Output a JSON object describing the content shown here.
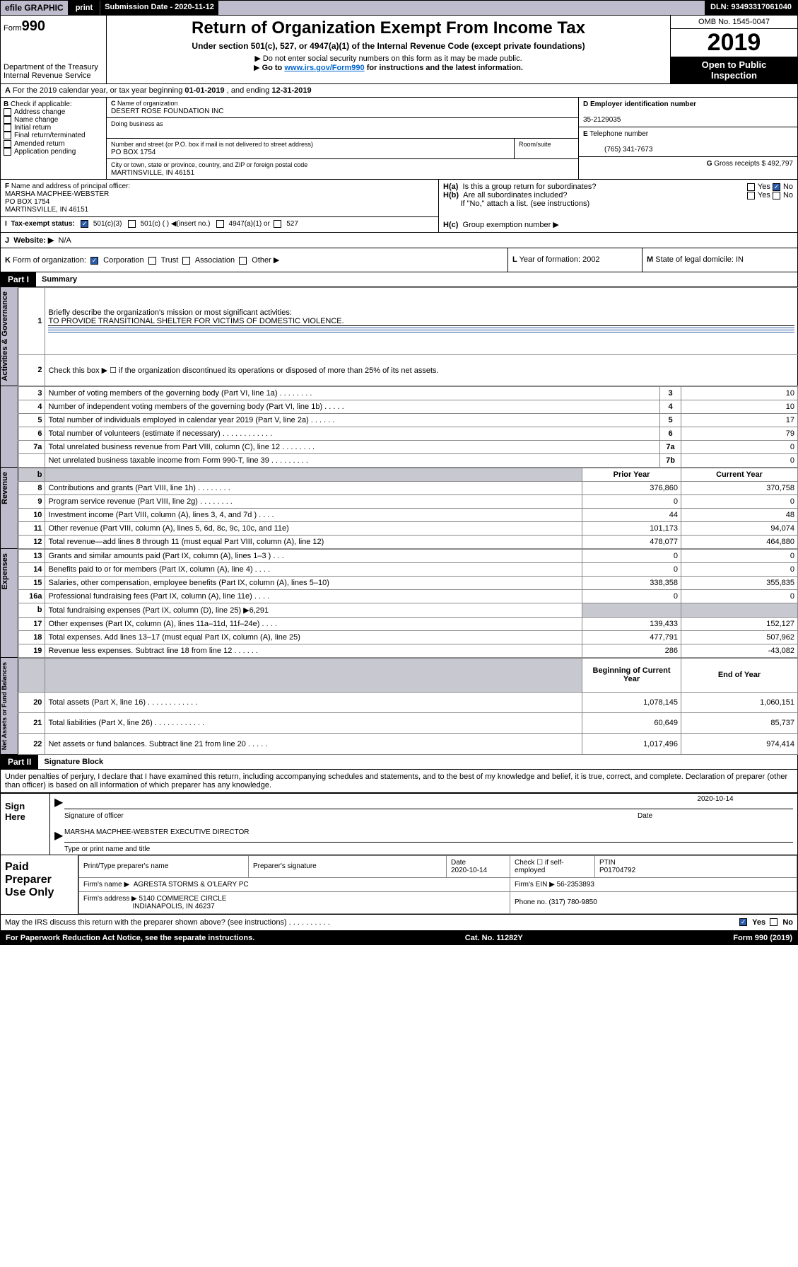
{
  "topbar": {
    "efile": "efile GRAPHIC",
    "print": "print",
    "sub_lbl": "Submission Date - ",
    "sub_date": "2020-11-12",
    "dln_lbl": "DLN: ",
    "dln": "93493317061040"
  },
  "header": {
    "form": "990",
    "form_prefix": "Form",
    "dept1": "Department of the Treasury",
    "dept2": "Internal Revenue Service",
    "title": "Return of Organization Exempt From Income Tax",
    "subtitle": "Under section 501(c), 527, or 4947(a)(1) of the Internal Revenue Code (except private foundations)",
    "hint1": "Do not enter social security numbers on this form as it may be made public.",
    "hint2a": "Go to ",
    "hint2b": "www.irs.gov/Form990",
    "hint2c": " for instructions and the latest information.",
    "omb": "OMB No. 1545-0047",
    "year": "2019",
    "open1": "Open to Public",
    "open2": "Inspection"
  },
  "rowA": {
    "text": "For the 2019 calendar year, or tax year beginning ",
    "begin": "01-01-2019",
    "mid": " , and ending ",
    "end": "12-31-2019"
  },
  "boxB": {
    "label": "Check if applicable:",
    "items": [
      "Address change",
      "Name change",
      "Initial return",
      "Final return/terminated",
      "Amended return",
      "Application pending"
    ]
  },
  "boxC": {
    "label": "Name of organization",
    "name": "DESERT ROSE FOUNDATION INC",
    "dba_label": "Doing business as",
    "addr_label": "Number and street (or P.O. box if mail is not delivered to street address)",
    "room_label": "Room/suite",
    "addr": "PO BOX 1754",
    "city_label": "City or town, state or province, country, and ZIP or foreign postal code",
    "city": "MARTINSVILLE, IN  46151"
  },
  "boxD": {
    "label": "Employer identification number",
    "val": "35-2129035"
  },
  "boxE": {
    "label": "Telephone number",
    "val": "(765) 341-7673"
  },
  "boxG": {
    "label": "Gross receipts $",
    "val": "492,797"
  },
  "boxF": {
    "label": "Name and address of principal officer:",
    "name": "MARSHA MACPHEE-WEBSTER",
    "addr1": "PO BOX 1754",
    "addr2": "MARTINSVILLE, IN  46151"
  },
  "boxH": {
    "a": "Is this a group return for subordinates?",
    "b": "Are all subordinates included?",
    "b2": "If \"No,\" attach a list. (see instructions)",
    "c": "Group exemption number ▶"
  },
  "boxI": {
    "label": "Tax-exempt status:",
    "o1": "501(c)(3)",
    "o2": "501(c) (   ) ◀(insert no.)",
    "o3": "4947(a)(1) or",
    "o4": "527"
  },
  "boxJ": {
    "label": "Website: ▶",
    "val": "N/A"
  },
  "boxK": {
    "label": "Form of organization:",
    "o1": "Corporation",
    "o2": "Trust",
    "o3": "Association",
    "o4": "Other ▶"
  },
  "boxL": {
    "label": "Year of formation:",
    "val": "2002"
  },
  "boxM": {
    "label": "State of legal domicile:",
    "val": "IN"
  },
  "part1": {
    "hdr": "Part I",
    "title": "Summary",
    "side1": "Activities & Governance",
    "side2": "Revenue",
    "side3": "Expenses",
    "side4": "Net Assets or Fund Balances",
    "l1": "Briefly describe the organization's mission or most significant activities:",
    "l1v": "TO PROVIDE TRANSITIONAL SHELTER FOR VICTIMS OF DOMESTIC VIOLENCE.",
    "l2": "Check this box ▶ ☐ if the organization discontinued its operations or disposed of more than 25% of its net assets.",
    "rows_gov": [
      {
        "n": "3",
        "t": "Number of voting members of the governing body (Part VI, line 1a)   .    .    .    .    .    .    .    .",
        "b": "3",
        "v": "10"
      },
      {
        "n": "4",
        "t": "Number of independent voting members of the governing body (Part VI, line 1b)   .    .    .    .    .",
        "b": "4",
        "v": "10"
      },
      {
        "n": "5",
        "t": "Total number of individuals employed in calendar year 2019 (Part V, line 2a)   .    .    .    .    .    .",
        "b": "5",
        "v": "17"
      },
      {
        "n": "6",
        "t": "Total number of volunteers (estimate if necessary)   .    .    .    .    .    .    .    .    .    .    .    .",
        "b": "6",
        "v": "79"
      },
      {
        "n": "7a",
        "t": "Total unrelated business revenue from Part VIII, column (C), line 12   .    .    .    .    .    .    .    .",
        "b": "7a",
        "v": "0"
      },
      {
        "n": "",
        "t": "Net unrelated business taxable income from Form 990-T, line 39   .    .    .    .    .    .    .    .    .",
        "b": "7b",
        "v": "0"
      }
    ],
    "col_prior": "Prior Year",
    "col_curr": "Current Year",
    "rows_rev": [
      {
        "n": "8",
        "t": "Contributions and grants (Part VIII, line 1h)   .    .    .    .    .    .    .    .",
        "p": "376,860",
        "c": "370,758"
      },
      {
        "n": "9",
        "t": "Program service revenue (Part VIII, line 2g)   .    .    .    .    .    .    .    .",
        "p": "0",
        "c": "0"
      },
      {
        "n": "10",
        "t": "Investment income (Part VIII, column (A), lines 3, 4, and 7d )   .    .    .    .",
        "p": "44",
        "c": "48"
      },
      {
        "n": "11",
        "t": "Other revenue (Part VIII, column (A), lines 5, 6d, 8c, 9c, 10c, and 11e)",
        "p": "101,173",
        "c": "94,074"
      },
      {
        "n": "12",
        "t": "Total revenue—add lines 8 through 11 (must equal Part VIII, column (A), line 12)",
        "p": "478,077",
        "c": "464,880"
      }
    ],
    "rows_exp": [
      {
        "n": "13",
        "t": "Grants and similar amounts paid (Part IX, column (A), lines 1–3 )   .    .    .",
        "p": "0",
        "c": "0"
      },
      {
        "n": "14",
        "t": "Benefits paid to or for members (Part IX, column (A), line 4)   .    .    .    .",
        "p": "0",
        "c": "0"
      },
      {
        "n": "15",
        "t": "Salaries, other compensation, employee benefits (Part IX, column (A), lines 5–10)",
        "p": "338,358",
        "c": "355,835"
      },
      {
        "n": "16a",
        "t": "Professional fundraising fees (Part IX, column (A), line 11e)   .    .    .    .",
        "p": "0",
        "c": "0"
      },
      {
        "n": "b",
        "t": "Total fundraising expenses (Part IX, column (D), line 25) ▶6,291",
        "p": "",
        "c": "",
        "shade": true
      },
      {
        "n": "17",
        "t": "Other expenses (Part IX, column (A), lines 11a–11d, 11f–24e)   .    .    .    .",
        "p": "139,433",
        "c": "152,127"
      },
      {
        "n": "18",
        "t": "Total expenses. Add lines 13–17 (must equal Part IX, column (A), line 25)",
        "p": "477,791",
        "c": "507,962"
      },
      {
        "n": "19",
        "t": "Revenue less expenses. Subtract line 18 from line 12   .    .    .    .    .    .",
        "p": "286",
        "c": "-43,082"
      }
    ],
    "col_begin": "Beginning of Current Year",
    "col_end": "End of Year",
    "rows_net": [
      {
        "n": "20",
        "t": "Total assets (Part X, line 16)   .    .    .    .    .    .    .    .    .    .    .    .",
        "p": "1,078,145",
        "c": "1,060,151"
      },
      {
        "n": "21",
        "t": "Total liabilities (Part X, line 26)   .    .    .    .    .    .    .    .    .    .    .    .",
        "p": "60,649",
        "c": "85,737"
      },
      {
        "n": "22",
        "t": "Net assets or fund balances. Subtract line 21 from line 20   .    .    .    .    .",
        "p": "1,017,496",
        "c": "974,414"
      }
    ]
  },
  "part2": {
    "hdr": "Part II",
    "title": "Signature Block",
    "decl": "Under penalties of perjury, I declare that I have examined this return, including accompanying schedules and statements, and to the best of my knowledge and belief, it is true, correct, and complete. Declaration of preparer (other than officer) is based on all information of which preparer has any knowledge.",
    "sign": "Sign Here",
    "sig_officer": "Signature of officer",
    "sig_date": "2020-10-14",
    "date_lbl": "Date",
    "sig_name": "MARSHA MACPHEE-WEBSTER  EXECUTIVE DIRECTOR",
    "sig_name_lbl": "Type or print name and title",
    "paid": "Paid Preparer Use Only",
    "p_name_lbl": "Print/Type preparer's name",
    "p_sig_lbl": "Preparer's signature",
    "p_date_lbl": "Date",
    "p_date": "2020-10-14",
    "p_self": "Check ☐ if self-employed",
    "p_ptin_lbl": "PTIN",
    "p_ptin": "P01704792",
    "firm_lbl": "Firm's name    ▶",
    "firm": "AGRESTA STORMS & O'LEARY PC",
    "ein_lbl": "Firm's EIN ▶",
    "ein": "56-2353893",
    "addr_lbl": "Firm's address ▶",
    "addr1": "5140 COMMERCE CIRCLE",
    "addr2": "INDIANAPOLIS, IN  46237",
    "phone_lbl": "Phone no.",
    "phone": "(317) 780-9850",
    "discuss": "May the IRS discuss this return with the preparer shown above? (see instructions)   .    .    .    .    .    .    .    .    .    .",
    "yes": "Yes",
    "no": "No"
  },
  "footer": {
    "pra": "For Paperwork Reduction Act Notice, see the separate instructions.",
    "cat": "Cat. No. 11282Y",
    "form": "Form 990 (2019)"
  }
}
